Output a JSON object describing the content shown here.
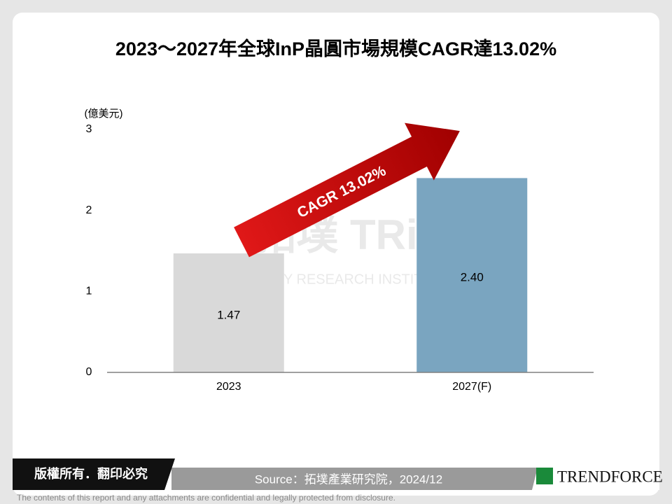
{
  "chart_data": {
    "type": "bar",
    "title": "2023～2027年全球InP晶圓市場規模CAGR達13.02%",
    "y_label": "(億美元)",
    "categories": [
      "2023",
      "2027(F)"
    ],
    "values": [
      1.47,
      2.4
    ],
    "value_labels": [
      "1.47",
      "2.40"
    ],
    "colors": [
      "#d9d9d9",
      "#7aa5c0"
    ],
    "ylim": [
      0,
      3
    ],
    "yticks": [
      0,
      1,
      2,
      3
    ],
    "annotation": "CAGR 13.02%"
  },
  "watermark": {
    "logo": "拓墣 TRi",
    "name": "TOPOLOGY RESEARCH INSTITUTE"
  },
  "footer": {
    "copyright": "版權所有．翻印必究",
    "source": "Source：拓墣產業研究院，2024/12",
    "logo": "TRENDFORCE",
    "disclaimer": "The contents of this report and any attachments are confidential and legally protected from disclosure."
  }
}
